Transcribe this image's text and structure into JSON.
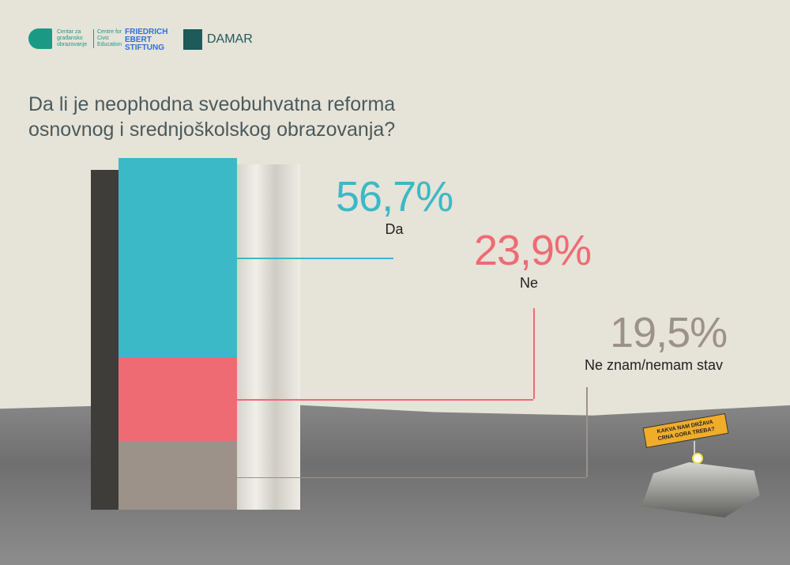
{
  "logos": {
    "cgo_left": "Centar za građansko obrazovanje",
    "cgo_right": "Centre for Civic Education",
    "fes": [
      "FRIEDRICH",
      "EBERT",
      "STIFTUNG"
    ],
    "damar": "DAMAR"
  },
  "chart_data": {
    "type": "bar",
    "title": "Da li je neophodna sveobuhvatna reforma osnovnog i srednjoškolskog obrazovanja?",
    "title_lines": [
      "Da li je neophodna sveobuhvatna reforma",
      "osnovnog i srednjoškolskog obrazovanja?"
    ],
    "categories": [
      "Da",
      "Ne",
      "Ne znam/nemam stav"
    ],
    "values": [
      56.7,
      23.9,
      19.5
    ],
    "labels": [
      "56,7%",
      "23,9%",
      "19,5%"
    ],
    "colors": [
      "#3bb9c6",
      "#ee6b74",
      "#9c9289"
    ],
    "stacked": true
  },
  "sign": [
    "KAKVA NAM DRŽAVA",
    "CRNA GORA TREBA?"
  ]
}
